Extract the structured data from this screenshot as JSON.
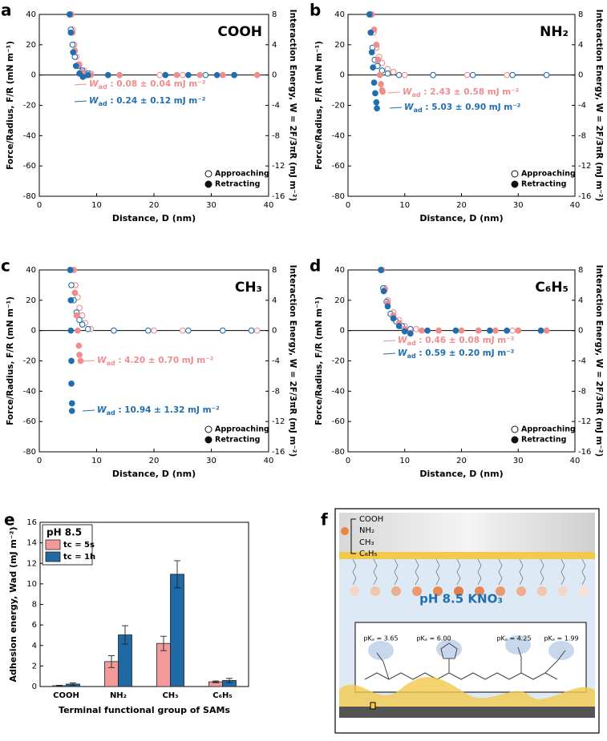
{
  "chart_data": [
    {
      "type": "scatter",
      "panel": "a",
      "title": "COOH",
      "xlabel": "Distance, D (nm)",
      "ylabel": "Force/Radius, F/R (mN m⁻¹)",
      "y2label": "Interaction Energy, W = 2F/3πR (mJ m⁻²)",
      "xlim": [
        0,
        40
      ],
      "xticks": [
        0,
        10,
        20,
        30,
        40
      ],
      "ylim": [
        -80,
        40
      ],
      "yticks": [
        -80,
        -60,
        -40,
        -20,
        0,
        20,
        40
      ],
      "y2lim": [
        -16,
        8
      ],
      "y2ticks": [
        -16,
        -12,
        -8,
        -4,
        0,
        4,
        8
      ],
      "legend": [
        "Approaching",
        "Retracting"
      ],
      "series": [
        {
          "color": "#f08c8c",
          "filled": false,
          "x": [
            5.6,
            5.8,
            6.1,
            6.5,
            7,
            7.8,
            9,
            14,
            21,
            25,
            32,
            38
          ],
          "values": [
            40,
            30,
            20,
            12,
            7,
            3,
            1,
            0,
            0,
            0,
            0,
            0
          ]
        },
        {
          "color": "#1f6fb0",
          "filled": false,
          "x": [
            5.3,
            5.5,
            5.8,
            6.2,
            6.8,
            7.5,
            8.5,
            12,
            22,
            29,
            34
          ],
          "values": [
            40,
            30,
            20,
            12,
            6,
            3,
            1,
            0,
            0,
            0,
            0
          ]
        },
        {
          "color": "#f08c8c",
          "filled": true,
          "x": [
            5.6,
            5.8,
            6.2,
            6.8,
            7.4,
            8,
            9,
            14,
            24,
            28,
            32,
            38
          ],
          "values": [
            40,
            28,
            16,
            7,
            2,
            -0.5,
            0,
            0,
            0,
            0,
            0,
            0
          ]
        },
        {
          "color": "#1f6fb0",
          "filled": true,
          "x": [
            5.3,
            5.5,
            5.9,
            6.4,
            7,
            7.6,
            8.5,
            12,
            22,
            26,
            31,
            34
          ],
          "values": [
            40,
            28,
            15,
            6,
            1,
            -1.2,
            0,
            0,
            0,
            0,
            0,
            0
          ]
        }
      ],
      "annotations": [
        {
          "symbol": "W",
          "sub": "ad",
          "text": " : 0.08 ± 0.04 mJ m⁻²",
          "color": "#f08c8c"
        },
        {
          "symbol": "W",
          "sub": "ad",
          "text": " : 0.24 ± 0.12 mJ m⁻²",
          "color": "#1f6fb0"
        }
      ]
    },
    {
      "type": "scatter",
      "panel": "b",
      "title": "NH₂",
      "xlabel": "Distance, D (nm)",
      "ylabel": "Force/Radius, F/R (mN m⁻¹)",
      "y2label": "Interaction Energy, W = 2F/3πR (mJ m⁻²)",
      "xlim": [
        0,
        40
      ],
      "xticks": [
        0,
        10,
        20,
        30,
        40
      ],
      "ylim": [
        -80,
        40
      ],
      "yticks": [
        -80,
        -60,
        -40,
        -20,
        0,
        20,
        40
      ],
      "y2lim": [
        -16,
        8
      ],
      "y2ticks": [
        -16,
        -12,
        -8,
        -4,
        0,
        4,
        8
      ],
      "legend": [
        "Approaching",
        "Retracting"
      ],
      "series": [
        {
          "color": "#f08c8c",
          "filled": false,
          "x": [
            4.2,
            4.5,
            5,
            5.5,
            6,
            7,
            8,
            10,
            15,
            21,
            28,
            35
          ],
          "values": [
            40,
            28,
            18,
            12,
            8,
            4,
            2,
            0,
            0,
            0,
            0,
            0
          ]
        },
        {
          "color": "#1f6fb0",
          "filled": false,
          "x": [
            3.8,
            4,
            4.3,
            4.7,
            5.2,
            6,
            7,
            9,
            15,
            22,
            29,
            35
          ],
          "values": [
            40,
            28,
            18,
            10,
            6,
            3,
            1,
            0,
            0,
            0,
            0,
            0
          ]
        },
        {
          "color": "#f08c8c",
          "filled": true,
          "x": [
            4.2,
            4.6,
            5,
            5.3,
            5.6,
            5.8,
            6,
            6.1
          ],
          "values": [
            40,
            30,
            20,
            10,
            0,
            -6,
            -10,
            -11
          ]
        },
        {
          "color": "#1f6fb0",
          "filled": true,
          "x": [
            3.8,
            4,
            4.2,
            4.4,
            4.6,
            4.8,
            5,
            5.1
          ],
          "values": [
            40,
            28,
            15,
            5,
            -5,
            -12,
            -18,
            -22
          ]
        }
      ],
      "annotations": [
        {
          "symbol": "W",
          "sub": "ad",
          "text": " : 2.43 ± 0.58 mJ m⁻²",
          "color": "#f08c8c"
        },
        {
          "symbol": "W",
          "sub": "ad",
          "text": " : 5.03 ± 0.90 mJ m⁻²",
          "color": "#1f6fb0"
        }
      ]
    },
    {
      "type": "scatter",
      "panel": "c",
      "title": "CH₃",
      "xlabel": "Distance, D (nm)",
      "ylabel": "Force/Radius, F/R (mN m⁻¹)",
      "y2label": "Interaction Energy, W = 2F/3πR (mJ m⁻²)",
      "xlim": [
        0,
        40
      ],
      "xticks": [
        0,
        10,
        20,
        30,
        40
      ],
      "ylim": [
        -80,
        40
      ],
      "yticks": [
        -80,
        -60,
        -40,
        -20,
        0,
        20,
        40
      ],
      "y2lim": [
        -16,
        8
      ],
      "y2ticks": [
        -16,
        -12,
        -8,
        -4,
        0,
        4,
        8
      ],
      "legend": [
        "Approaching",
        "Retracting"
      ],
      "series": [
        {
          "color": "#f08c8c",
          "filled": false,
          "x": [
            6,
            6.3,
            6.7,
            7,
            7.5,
            8,
            9,
            13,
            20,
            25,
            32,
            38
          ],
          "values": [
            40,
            30,
            22,
            15,
            10,
            5,
            1,
            0,
            0,
            0,
            0,
            0
          ]
        },
        {
          "color": "#1f6fb0",
          "filled": false,
          "x": [
            5.4,
            5.6,
            6,
            6.5,
            7,
            7.5,
            8.5,
            13,
            19,
            26,
            32,
            37
          ],
          "values": [
            40,
            30,
            20,
            12,
            7,
            4,
            1,
            0,
            0,
            0,
            0,
            0
          ]
        },
        {
          "color": "#f08c8c",
          "filled": true,
          "x": [
            6,
            6.2,
            6.5,
            6.7,
            6.9,
            7,
            7.2
          ],
          "values": [
            40,
            25,
            10,
            0,
            -10,
            -16,
            -20
          ]
        },
        {
          "color": "#1f6fb0",
          "filled": true,
          "x": [
            5.4,
            5.5,
            5.5,
            5.6,
            5.6,
            5.7,
            5.7
          ],
          "values": [
            40,
            20,
            0,
            -20,
            -35,
            -48,
            -53
          ]
        }
      ],
      "annotations": [
        {
          "symbol": "W",
          "sub": "ad",
          "text": " : 4.20 ± 0.70 mJ m⁻²",
          "color": "#f08c8c"
        },
        {
          "symbol": "W",
          "sub": "ad",
          "text": " : 10.94 ± 1.32 mJ m⁻²",
          "color": "#1f6fb0"
        }
      ]
    },
    {
      "type": "scatter",
      "panel": "d",
      "title": "C₆H₅",
      "xlabel": "Distance, D (nm)",
      "ylabel": "Force/Radius, F/R (mN m⁻¹)",
      "y2label": "Interaction Energy, W = 2F/3πR (mJ m⁻²)",
      "xlim": [
        0,
        40
      ],
      "xticks": [
        0,
        10,
        20,
        30,
        40
      ],
      "ylim": [
        -80,
        40
      ],
      "yticks": [
        -80,
        -60,
        -40,
        -20,
        0,
        20,
        40
      ],
      "y2lim": [
        -16,
        8
      ],
      "y2ticks": [
        -16,
        -12,
        -8,
        -4,
        0,
        4,
        8
      ],
      "legend": [
        "Approaching",
        "Retracting"
      ],
      "series": [
        {
          "color": "#f08c8c",
          "filled": false,
          "x": [
            6,
            6.5,
            7,
            8,
            9,
            10,
            12,
            16,
            19,
            23,
            26,
            29,
            35
          ],
          "values": [
            40,
            28,
            20,
            12,
            7,
            3,
            1,
            0,
            0,
            0,
            0,
            0,
            0
          ]
        },
        {
          "color": "#1f6fb0",
          "filled": false,
          "x": [
            5.8,
            6.2,
            6.8,
            7.5,
            8.5,
            9.5,
            11,
            14,
            19,
            25,
            28,
            30,
            34
          ],
          "values": [
            40,
            28,
            19,
            11,
            6,
            3,
            1,
            0,
            0,
            0,
            0,
            0,
            0
          ]
        },
        {
          "color": "#f08c8c",
          "filled": true,
          "x": [
            6,
            6.5,
            7,
            8,
            9,
            10,
            11,
            13,
            16,
            20,
            23,
            26,
            30,
            35
          ],
          "values": [
            40,
            27,
            18,
            10,
            5,
            1,
            -1.5,
            0,
            0,
            0,
            0,
            0,
            0,
            0
          ]
        },
        {
          "color": "#1f6fb0",
          "filled": true,
          "x": [
            5.8,
            6.3,
            7,
            8,
            9,
            10,
            11,
            14,
            19,
            25,
            28,
            34
          ],
          "values": [
            40,
            26,
            16,
            8,
            3,
            -0.5,
            -2,
            0,
            0,
            0,
            0,
            0
          ]
        }
      ],
      "annotations": [
        {
          "symbol": "W",
          "sub": "ad",
          "text": " : 0.46 ± 0.08 mJ m⁻²",
          "color": "#f08c8c"
        },
        {
          "symbol": "W",
          "sub": "ad",
          "text": " : 0.59 ± 0.20 mJ m⁻²",
          "color": "#1f6fb0"
        }
      ]
    },
    {
      "type": "bar",
      "panel": "e",
      "legend_title": "pH 8.5",
      "xlabel": "Terminal functional group of SAMs",
      "ylabel": "Adhesion energy, Wad (mJ m⁻²)",
      "categories": [
        "COOH",
        "NH₂",
        "CH₃",
        "C₆H₅"
      ],
      "ylim": [
        0,
        16
      ],
      "yticks": [
        0,
        2,
        4,
        6,
        8,
        10,
        12,
        14,
        16
      ],
      "series": [
        {
          "name": "tc = 5s",
          "color": "#f29a9a",
          "values": [
            0.08,
            2.43,
            4.2,
            0.46
          ],
          "errors": [
            0.04,
            0.58,
            0.7,
            0.08
          ]
        },
        {
          "name": "tc = 1h",
          "color": "#1f6aa5",
          "values": [
            0.24,
            5.03,
            10.94,
            0.59
          ],
          "errors": [
            0.12,
            0.9,
            1.32,
            0.2
          ]
        }
      ]
    }
  ],
  "diagram": {
    "label": "f",
    "groups": [
      "COOH",
      "NH₂",
      "CH₃",
      "C₆H₅"
    ],
    "solution": "pH 8.5 KNO₃",
    "pka": [
      "pKₐ = 3.65",
      "pKₐ = 6.00",
      "pKₐ = 4.25",
      "pKₐ = 1.99"
    ]
  }
}
